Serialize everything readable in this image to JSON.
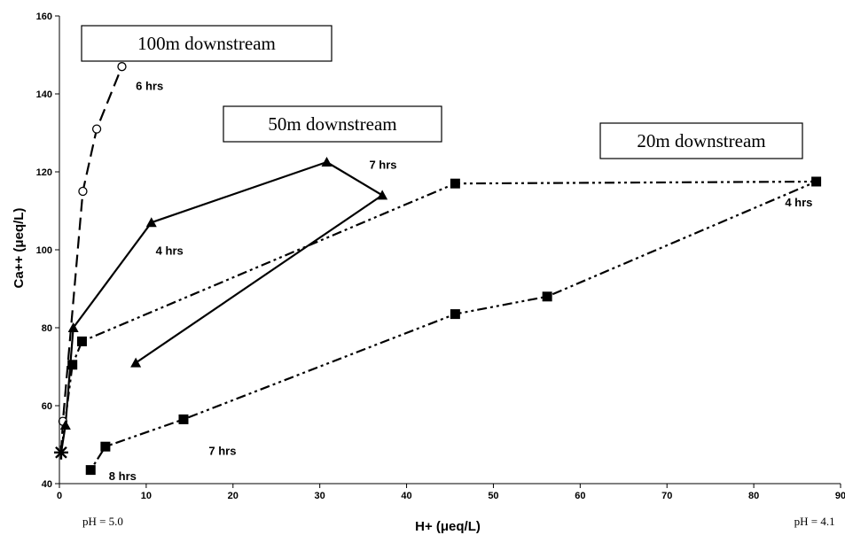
{
  "chart_data": {
    "type": "scatter",
    "xlabel": "H+ (μeq/L)",
    "ylabel": "Ca++ (μeq/L)",
    "xlim": [
      0,
      90
    ],
    "ylim": [
      40,
      160
    ],
    "xticks": [
      0,
      10,
      20,
      30,
      40,
      50,
      60,
      70,
      80,
      90
    ],
    "yticks": [
      40,
      60,
      80,
      100,
      120,
      140,
      160
    ],
    "grid": false,
    "ph_labels": [
      {
        "text": "pH = 5.0",
        "x": 5
      },
      {
        "text": "pH = 4.1",
        "x": 87
      }
    ],
    "series": [
      {
        "marker": "circle",
        "line": "dashed",
        "box_label": "100m downstream",
        "points": [
          [
            0.2,
            48
          ],
          [
            0.4,
            56
          ],
          [
            2.7,
            115
          ],
          [
            4.3,
            131
          ],
          [
            7.2,
            147
          ]
        ]
      },
      {
        "marker": "triangle",
        "line": "solid",
        "box_label": "50m downstream",
        "points": [
          [
            0.2,
            48
          ],
          [
            0.7,
            55
          ],
          [
            1.6,
            80
          ],
          [
            10.6,
            107
          ],
          [
            30.8,
            122.5
          ],
          [
            37.2,
            114
          ],
          [
            8.8,
            71
          ]
        ]
      },
      {
        "marker": "square",
        "line": "dash-dot-dot",
        "box_label": "20m downstream",
        "points": [
          [
            0.2,
            48
          ],
          [
            1.5,
            70.5
          ],
          [
            2.6,
            76.5
          ],
          [
            45.6,
            117
          ],
          [
            87.2,
            117.5
          ],
          [
            56.2,
            88
          ],
          [
            45.6,
            83.5
          ],
          [
            14.3,
            56.5
          ],
          [
            5.3,
            49.5
          ],
          [
            3.6,
            43.5
          ]
        ]
      }
    ],
    "annotations": [
      {
        "text": "6 hrs",
        "x": 8.8,
        "y": 141
      },
      {
        "text": "7 hrs",
        "x": 35.7,
        "y": 120.8
      },
      {
        "text": "4 hrs",
        "x": 11.1,
        "y": 98.8
      },
      {
        "text": "4 hrs",
        "x": 83.6,
        "y": 111.1
      },
      {
        "text": "7 hrs",
        "x": 17.2,
        "y": 47.4
      },
      {
        "text": "8 hrs",
        "x": 5.7,
        "y": 40.9
      }
    ],
    "start_marker": {
      "symbol": "asterisk",
      "x": 0.2,
      "y": 48
    }
  }
}
